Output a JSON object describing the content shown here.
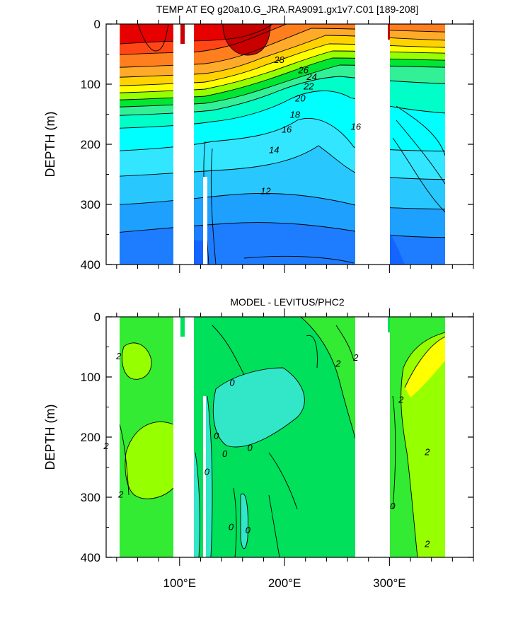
{
  "chart_data": [
    {
      "type": "contour",
      "title": "TEMP AT EQ g20a10.G_JRA.RA9091.gx1v7.C01 [189-208]",
      "ylabel": "DEPTH (m)",
      "xlabel": "",
      "xlim": [
        30,
        380
      ],
      "ylim": [
        400,
        0
      ],
      "yticks": [
        "0",
        "100",
        "200",
        "300",
        "400"
      ],
      "xticks": [],
      "contour_labels": [
        {
          "text": "28",
          "x": 195,
          "y": 60
        },
        {
          "text": "26",
          "x": 218,
          "y": 77
        },
        {
          "text": "24",
          "x": 226,
          "y": 88
        },
        {
          "text": "22",
          "x": 223,
          "y": 104
        },
        {
          "text": "20",
          "x": 215,
          "y": 124
        },
        {
          "text": "18",
          "x": 210,
          "y": 151
        },
        {
          "text": "16",
          "x": 202,
          "y": 176
        },
        {
          "text": "16",
          "x": 268,
          "y": 171
        },
        {
          "text": "14",
          "x": 190,
          "y": 210
        },
        {
          "text": "12",
          "x": 182,
          "y": 278
        }
      ],
      "colors": [
        "#1414ff",
        "#1e7dff",
        "#1ea0ff",
        "#28c8ff",
        "#32e6ff",
        "#00ffff",
        "#00ffc8",
        "#32f096",
        "#00e632",
        "#96ff00",
        "#ffff00",
        "#ffd200",
        "#ffaa28",
        "#ff7f1e",
        "#ff4614",
        "#e60000",
        "#c80000"
      ]
    },
    {
      "type": "contour",
      "title": "MODEL - LEVITUS/PHC2",
      "ylabel": "DEPTH (m)",
      "xlabel": "",
      "xlim": [
        30,
        380
      ],
      "ylim": [
        400,
        0
      ],
      "yticks": [
        "0",
        "100",
        "200",
        "300",
        "400"
      ],
      "xticks": [
        "100°E",
        "200°E",
        "300°E"
      ],
      "contour_labels": [
        {
          "text": "2",
          "x": 42,
          "y": 66
        },
        {
          "text": "2",
          "x": 30,
          "y": 215
        },
        {
          "text": "2",
          "x": 44,
          "y": 296
        },
        {
          "text": "0",
          "x": 150,
          "y": 110
        },
        {
          "text": "0",
          "x": 135,
          "y": 198
        },
        {
          "text": "0",
          "x": 143,
          "y": 228
        },
        {
          "text": "0",
          "x": 167,
          "y": 218
        },
        {
          "text": "0",
          "x": 126,
          "y": 258
        },
        {
          "text": "0",
          "x": 149,
          "y": 350
        },
        {
          "text": "0",
          "x": 165,
          "y": 355
        },
        {
          "text": "2",
          "x": 251,
          "y": 78
        },
        {
          "text": "2",
          "x": 268,
          "y": 68
        },
        {
          "text": "0",
          "x": 303,
          "y": 315
        },
        {
          "text": "2",
          "x": 311,
          "y": 138
        },
        {
          "text": "2",
          "x": 336,
          "y": 225
        },
        {
          "text": "2",
          "x": 336,
          "y": 378
        }
      ],
      "colors": [
        "#32e6c8",
        "#00e05a",
        "#32eb32",
        "#96ff00",
        "#ffff00"
      ]
    }
  ]
}
